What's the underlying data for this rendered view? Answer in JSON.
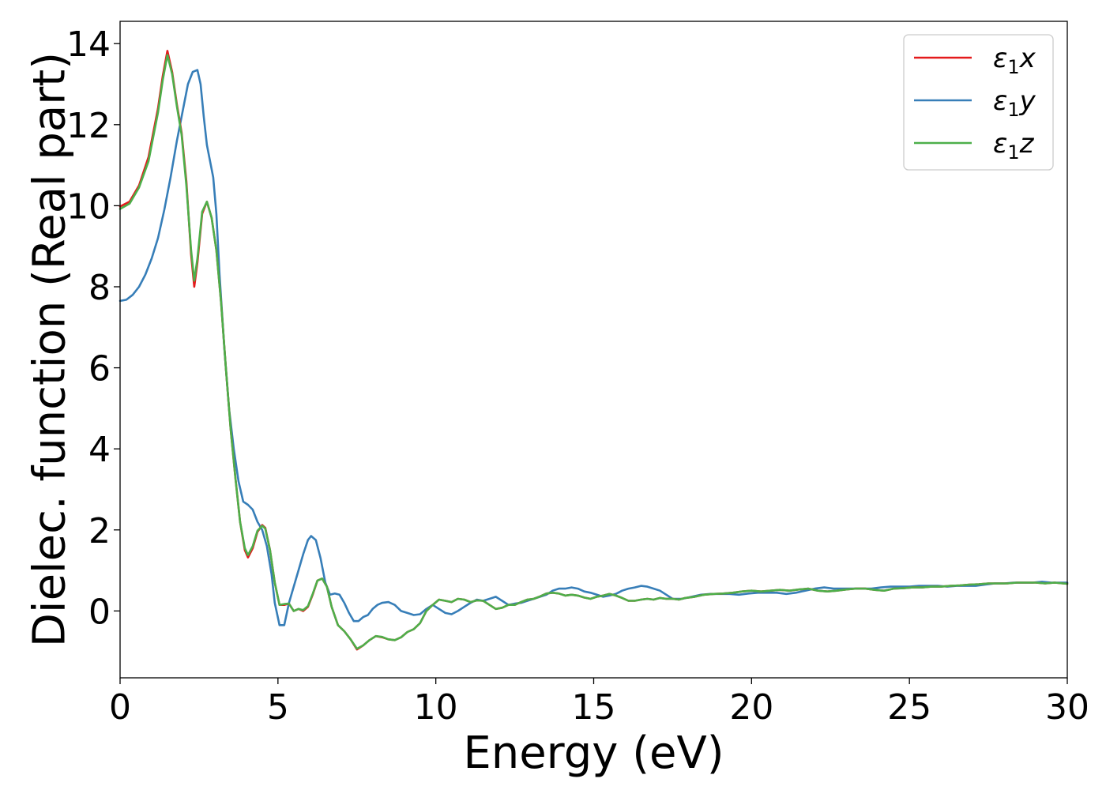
{
  "chart_data": {
    "type": "line",
    "title": "",
    "xlabel": "Energy (eV)",
    "ylabel": "Dielec. function (Real part)",
    "xlim": [
      0,
      30
    ],
    "ylim": [
      -1.65,
      14.55
    ],
    "xticks": [
      0,
      5,
      10,
      15,
      20,
      25,
      30
    ],
    "yticks": [
      0,
      2,
      4,
      6,
      8,
      10,
      12,
      14
    ],
    "grid": false,
    "legend_position": "top-right",
    "series": [
      {
        "name": "ε₁x",
        "legend_base": "ε",
        "legend_sub": "1",
        "legend_var": "x",
        "color": "#e41a1c",
        "x": [
          0,
          0.3,
          0.6,
          0.9,
          1.2,
          1.35,
          1.5,
          1.65,
          1.8,
          1.95,
          2.1,
          2.25,
          2.35,
          2.45,
          2.6,
          2.75,
          2.9,
          3.05,
          3.2,
          3.35,
          3.5,
          3.65,
          3.8,
          3.95,
          4.05,
          4.2,
          4.35,
          4.5,
          4.6,
          4.75,
          4.9,
          5.05,
          5.2,
          5.35,
          5.5,
          5.65,
          5.8,
          5.95,
          6.1,
          6.25,
          6.4,
          6.55,
          6.7,
          6.9,
          7.1,
          7.3,
          7.5,
          7.7,
          7.9,
          8.1,
          8.3,
          8.5,
          8.7,
          8.9,
          9.1,
          9.3,
          9.5,
          9.7,
          9.9,
          10.1,
          10.3,
          10.5,
          10.7,
          10.9,
          11.1,
          11.3,
          11.5,
          11.7,
          11.9,
          12.1,
          12.3,
          12.5,
          12.7,
          12.9,
          13.1,
          13.3,
          13.5,
          13.7,
          13.9,
          14.1,
          14.3,
          14.5,
          14.7,
          14.9,
          15.1,
          15.3,
          15.5,
          15.7,
          15.9,
          16.1,
          16.3,
          16.5,
          16.7,
          16.9,
          17.1,
          17.3,
          17.5,
          17.7,
          17.9,
          18.2,
          18.5,
          18.8,
          19.1,
          19.4,
          19.7,
          20,
          20.3,
          20.6,
          20.9,
          21.2,
          21.5,
          21.8,
          22.1,
          22.4,
          22.7,
          23,
          23.3,
          23.6,
          23.9,
          24.2,
          24.5,
          24.8,
          25.1,
          25.4,
          25.7,
          26,
          26.3,
          26.6,
          26.9,
          27.2,
          27.5,
          27.8,
          28.1,
          28.4,
          28.7,
          29,
          29.3,
          29.6,
          30
        ],
        "y": [
          9.98,
          10.1,
          10.5,
          11.2,
          12.4,
          13.2,
          13.82,
          13.3,
          12.5,
          11.8,
          10.6,
          8.8,
          8.0,
          8.6,
          9.8,
          10.1,
          9.7,
          8.9,
          7.6,
          6.0,
          4.5,
          3.3,
          2.2,
          1.5,
          1.32,
          1.55,
          1.95,
          2.12,
          2.05,
          1.5,
          0.7,
          0.15,
          0.15,
          0.18,
          0.0,
          0.05,
          0.0,
          0.1,
          0.4,
          0.75,
          0.8,
          0.6,
          0.1,
          -0.35,
          -0.5,
          -0.7,
          -0.95,
          -0.85,
          -0.72,
          -0.62,
          -0.65,
          -0.7,
          -0.72,
          -0.65,
          -0.52,
          -0.45,
          -0.3,
          0.0,
          0.15,
          0.28,
          0.25,
          0.22,
          0.3,
          0.28,
          0.22,
          0.26,
          0.25,
          0.15,
          0.05,
          0.08,
          0.15,
          0.15,
          0.22,
          0.28,
          0.3,
          0.36,
          0.43,
          0.45,
          0.43,
          0.38,
          0.4,
          0.38,
          0.33,
          0.3,
          0.35,
          0.38,
          0.42,
          0.38,
          0.32,
          0.25,
          0.25,
          0.28,
          0.3,
          0.28,
          0.32,
          0.3,
          0.3,
          0.28,
          0.32,
          0.35,
          0.4,
          0.42,
          0.43,
          0.45,
          0.48,
          0.5,
          0.48,
          0.5,
          0.52,
          0.5,
          0.53,
          0.55,
          0.5,
          0.48,
          0.5,
          0.53,
          0.55,
          0.55,
          0.52,
          0.5,
          0.55,
          0.56,
          0.58,
          0.58,
          0.6,
          0.6,
          0.62,
          0.63,
          0.65,
          0.66,
          0.68,
          0.68,
          0.68,
          0.7,
          0.7,
          0.7,
          0.68,
          0.7,
          0.67
        ]
      },
      {
        "name": "ε₁y",
        "legend_base": "ε",
        "legend_sub": "1",
        "legend_var": "y",
        "color": "#377eb8",
        "x": [
          0,
          0.2,
          0.4,
          0.6,
          0.8,
          1.0,
          1.2,
          1.4,
          1.6,
          1.8,
          2.0,
          2.15,
          2.3,
          2.45,
          2.55,
          2.65,
          2.75,
          2.85,
          2.95,
          3.05,
          3.15,
          3.3,
          3.45,
          3.6,
          3.75,
          3.9,
          4.05,
          4.2,
          4.35,
          4.5,
          4.65,
          4.8,
          4.9,
          5.05,
          5.2,
          5.35,
          5.5,
          5.65,
          5.8,
          5.95,
          6.05,
          6.2,
          6.35,
          6.5,
          6.65,
          6.8,
          6.95,
          7.1,
          7.25,
          7.4,
          7.55,
          7.7,
          7.85,
          8.0,
          8.15,
          8.3,
          8.5,
          8.7,
          8.9,
          9.1,
          9.3,
          9.5,
          9.7,
          9.9,
          10.1,
          10.3,
          10.5,
          10.7,
          10.9,
          11.1,
          11.3,
          11.5,
          11.7,
          11.9,
          12.1,
          12.3,
          12.5,
          12.7,
          12.9,
          13.1,
          13.3,
          13.5,
          13.7,
          13.9,
          14.1,
          14.3,
          14.5,
          14.7,
          14.9,
          15.1,
          15.3,
          15.5,
          15.7,
          15.9,
          16.1,
          16.3,
          16.5,
          16.7,
          16.9,
          17.1,
          17.3,
          17.5,
          17.8,
          18.1,
          18.4,
          18.7,
          19,
          19.3,
          19.6,
          19.9,
          20.2,
          20.5,
          20.8,
          21.1,
          21.4,
          21.7,
          22,
          22.3,
          22.6,
          22.9,
          23.2,
          23.5,
          23.8,
          24.1,
          24.4,
          24.7,
          25,
          25.3,
          25.6,
          25.9,
          26.2,
          26.5,
          26.8,
          27.1,
          27.4,
          27.7,
          28,
          28.3,
          28.6,
          28.9,
          29.2,
          29.5,
          30
        ],
        "y": [
          7.65,
          7.68,
          7.8,
          8.0,
          8.3,
          8.7,
          9.2,
          9.9,
          10.7,
          11.6,
          12.4,
          13.0,
          13.3,
          13.35,
          13.0,
          12.2,
          11.5,
          11.1,
          10.7,
          9.8,
          8.3,
          6.5,
          5.0,
          4.0,
          3.2,
          2.7,
          2.62,
          2.5,
          2.2,
          2.0,
          1.6,
          0.9,
          0.2,
          -0.35,
          -0.35,
          0.2,
          0.6,
          1.0,
          1.4,
          1.75,
          1.85,
          1.75,
          1.3,
          0.7,
          0.4,
          0.43,
          0.4,
          0.2,
          -0.05,
          -0.25,
          -0.25,
          -0.15,
          -0.1,
          0.05,
          0.15,
          0.2,
          0.22,
          0.15,
          0.0,
          -0.05,
          -0.1,
          -0.08,
          0.05,
          0.15,
          0.05,
          -0.05,
          -0.08,
          0.0,
          0.1,
          0.2,
          0.28,
          0.25,
          0.3,
          0.35,
          0.25,
          0.15,
          0.18,
          0.2,
          0.25,
          0.3,
          0.35,
          0.4,
          0.5,
          0.55,
          0.55,
          0.58,
          0.55,
          0.48,
          0.45,
          0.4,
          0.35,
          0.38,
          0.42,
          0.5,
          0.55,
          0.58,
          0.62,
          0.6,
          0.55,
          0.5,
          0.4,
          0.3,
          0.3,
          0.35,
          0.4,
          0.42,
          0.42,
          0.42,
          0.4,
          0.43,
          0.45,
          0.45,
          0.45,
          0.42,
          0.45,
          0.5,
          0.55,
          0.58,
          0.55,
          0.55,
          0.55,
          0.55,
          0.55,
          0.58,
          0.6,
          0.6,
          0.6,
          0.62,
          0.62,
          0.62,
          0.6,
          0.62,
          0.62,
          0.62,
          0.65,
          0.68,
          0.68,
          0.7,
          0.7,
          0.7,
          0.72,
          0.7,
          0.7
        ]
      },
      {
        "name": "ε₁z",
        "legend_base": "ε",
        "legend_sub": "1",
        "legend_var": "z",
        "color": "#4daf4a",
        "x": [
          0,
          0.3,
          0.6,
          0.9,
          1.2,
          1.35,
          1.5,
          1.65,
          1.8,
          1.95,
          2.1,
          2.25,
          2.35,
          2.45,
          2.6,
          2.75,
          2.9,
          3.05,
          3.2,
          3.35,
          3.5,
          3.65,
          3.8,
          3.95,
          4.05,
          4.2,
          4.35,
          4.5,
          4.6,
          4.75,
          4.9,
          5.05,
          5.2,
          5.35,
          5.5,
          5.65,
          5.8,
          5.95,
          6.1,
          6.25,
          6.4,
          6.55,
          6.7,
          6.9,
          7.1,
          7.3,
          7.5,
          7.7,
          7.9,
          8.1,
          8.3,
          8.5,
          8.7,
          8.9,
          9.1,
          9.3,
          9.5,
          9.7,
          9.9,
          10.1,
          10.3,
          10.5,
          10.7,
          10.9,
          11.1,
          11.3,
          11.5,
          11.7,
          11.9,
          12.1,
          12.3,
          12.5,
          12.7,
          12.9,
          13.1,
          13.3,
          13.5,
          13.7,
          13.9,
          14.1,
          14.3,
          14.5,
          14.7,
          14.9,
          15.1,
          15.3,
          15.5,
          15.7,
          15.9,
          16.1,
          16.3,
          16.5,
          16.7,
          16.9,
          17.1,
          17.3,
          17.5,
          17.7,
          17.9,
          18.2,
          18.5,
          18.8,
          19.1,
          19.4,
          19.7,
          20,
          20.3,
          20.6,
          20.9,
          21.2,
          21.5,
          21.8,
          22.1,
          22.4,
          22.7,
          23,
          23.3,
          23.6,
          23.9,
          24.2,
          24.5,
          24.8,
          25.1,
          25.4,
          25.7,
          26,
          26.3,
          26.6,
          26.9,
          27.2,
          27.5,
          27.8,
          28.1,
          28.4,
          28.7,
          29,
          29.3,
          29.6,
          30
        ],
        "y": [
          9.92,
          10.05,
          10.45,
          11.1,
          12.3,
          13.1,
          13.72,
          13.25,
          12.45,
          11.75,
          10.5,
          8.9,
          8.15,
          8.7,
          9.85,
          10.1,
          9.7,
          8.9,
          7.6,
          6.0,
          4.5,
          3.3,
          2.2,
          1.55,
          1.38,
          1.6,
          1.98,
          2.1,
          2.03,
          1.5,
          0.7,
          0.15,
          0.17,
          0.18,
          0.0,
          0.05,
          0.02,
          0.12,
          0.42,
          0.75,
          0.8,
          0.6,
          0.1,
          -0.35,
          -0.5,
          -0.7,
          -0.93,
          -0.85,
          -0.72,
          -0.62,
          -0.64,
          -0.7,
          -0.72,
          -0.65,
          -0.52,
          -0.45,
          -0.3,
          0.0,
          0.15,
          0.28,
          0.25,
          0.22,
          0.3,
          0.28,
          0.22,
          0.26,
          0.25,
          0.15,
          0.05,
          0.08,
          0.15,
          0.15,
          0.22,
          0.28,
          0.3,
          0.36,
          0.43,
          0.45,
          0.43,
          0.38,
          0.4,
          0.38,
          0.33,
          0.3,
          0.35,
          0.38,
          0.42,
          0.38,
          0.32,
          0.25,
          0.25,
          0.28,
          0.3,
          0.28,
          0.32,
          0.3,
          0.3,
          0.28,
          0.32,
          0.35,
          0.4,
          0.42,
          0.43,
          0.45,
          0.48,
          0.5,
          0.48,
          0.5,
          0.52,
          0.5,
          0.53,
          0.55,
          0.5,
          0.48,
          0.5,
          0.53,
          0.55,
          0.55,
          0.52,
          0.5,
          0.55,
          0.56,
          0.58,
          0.58,
          0.6,
          0.6,
          0.62,
          0.63,
          0.65,
          0.66,
          0.68,
          0.68,
          0.68,
          0.7,
          0.7,
          0.7,
          0.68,
          0.7,
          0.67
        ]
      }
    ]
  }
}
